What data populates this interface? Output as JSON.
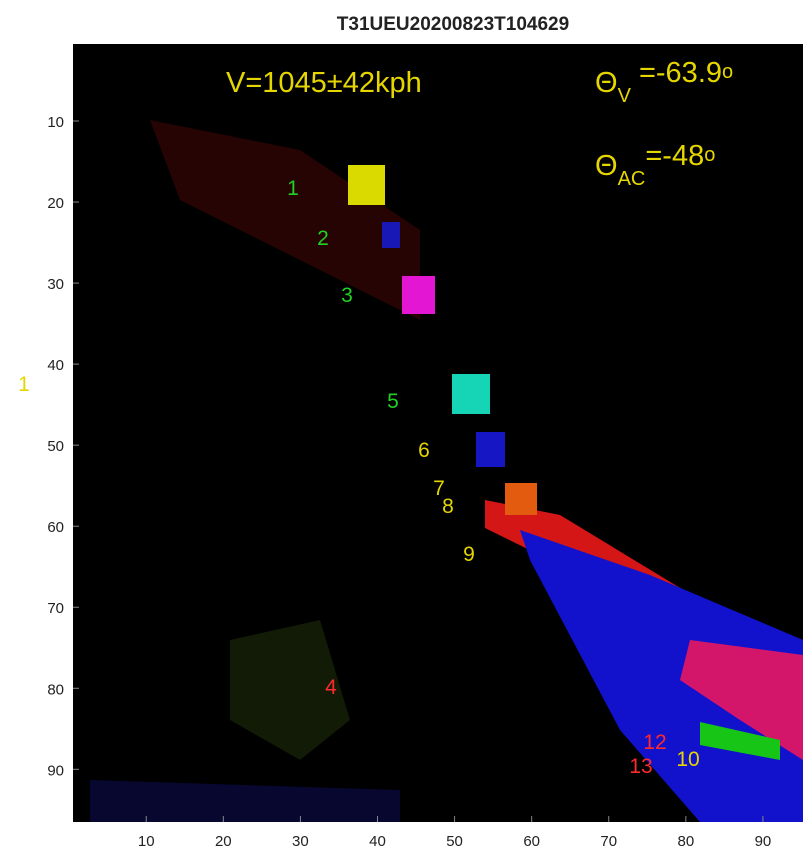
{
  "chart_data": {
    "type": "image",
    "title": "T31UEU20200823T104629",
    "xlim": [
      0.5,
      95.2
    ],
    "ylim": [
      0.5,
      96.5
    ],
    "y_reversed": true,
    "xticks": [
      10,
      20,
      30,
      40,
      50,
      60,
      70,
      80,
      90
    ],
    "yticks": [
      10,
      20,
      30,
      40,
      50,
      60,
      70,
      80,
      90
    ],
    "labels": [
      {
        "text": "1",
        "color": "#22d022"
      },
      {
        "text": "2",
        "color": "#22d022"
      },
      {
        "text": "3",
        "color": "#22d022"
      },
      {
        "text": "5",
        "color": "#22d022"
      },
      {
        "text": "6",
        "color": "#e6d600"
      },
      {
        "text": "7",
        "color": "#e6d600"
      },
      {
        "text": "8",
        "color": "#e6d600"
      },
      {
        "text": "9",
        "color": "#e6d600"
      },
      {
        "text": "4",
        "color": "#ff2a2a"
      },
      {
        "text": "12",
        "color": "#ff2a2a"
      },
      {
        "text": "13",
        "color": "#ff2a2a"
      },
      {
        "text": "10",
        "color": "#e6d600"
      },
      {
        "text": "1",
        "color": "#e6d600"
      }
    ],
    "annotations": [
      {
        "parts": [
          "V=1045±42kph"
        ],
        "color": "#e6d600"
      },
      {
        "parts": [
          "Θ",
          "V",
          " =-63.9",
          "o"
        ],
        "color": "#e6d600"
      },
      {
        "parts": [
          "Θ",
          "AC",
          "=-48",
          "o"
        ],
        "color": "#e6d600"
      }
    ]
  }
}
